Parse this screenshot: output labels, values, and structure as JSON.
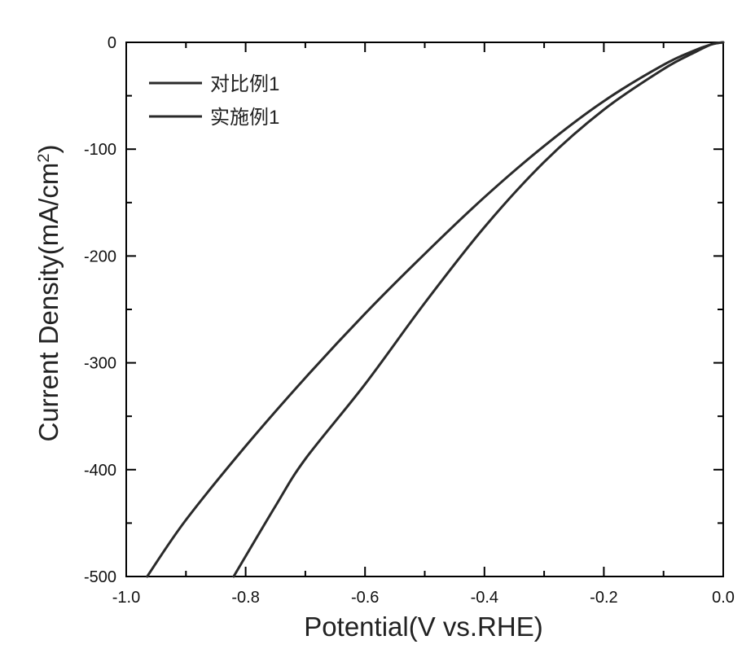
{
  "chart_data": {
    "type": "line",
    "xlabel": "Potential(V vs.RHE)",
    "ylabel": "Current Density(mA/cm",
    "ylabel_superscript": "2",
    "ylabel_suffix": ")",
    "xlim": [
      -1.0,
      0.0
    ],
    "ylim": [
      -500,
      0
    ],
    "x_ticks": [
      -1.0,
      -0.8,
      -0.6,
      -0.4,
      -0.2,
      0.0
    ],
    "x_tick_labels": [
      "-1.0",
      "-0.8",
      "-0.6",
      "-0.4",
      "-0.2",
      "0.0"
    ],
    "y_ticks": [
      0,
      -100,
      -200,
      -300,
      -400,
      -500
    ],
    "y_tick_labels": [
      "0",
      "-100",
      "-200",
      "-300",
      "-400",
      "-500"
    ],
    "grid": false,
    "legend_position": "top-left",
    "series": [
      {
        "name": "对比例1",
        "x": [
          -0.965,
          -0.9,
          -0.8,
          -0.7,
          -0.6,
          -0.5,
          -0.4,
          -0.3,
          -0.2,
          -0.1,
          -0.05,
          -0.02,
          0.0
        ],
        "y": [
          -500,
          -447,
          -378,
          -314,
          -254,
          -198,
          -145,
          -97,
          -55,
          -21,
          -8,
          -2,
          0
        ]
      },
      {
        "name": "实施例1",
        "x": [
          -0.82,
          -0.75,
          -0.7,
          -0.6,
          -0.5,
          -0.4,
          -0.3,
          -0.2,
          -0.1,
          -0.05,
          -0.02,
          0.0
        ],
        "y": [
          -500,
          -434,
          -390,
          -320,
          -244,
          -173,
          -112,
          -63,
          -25,
          -10,
          -2,
          0
        ]
      }
    ]
  }
}
